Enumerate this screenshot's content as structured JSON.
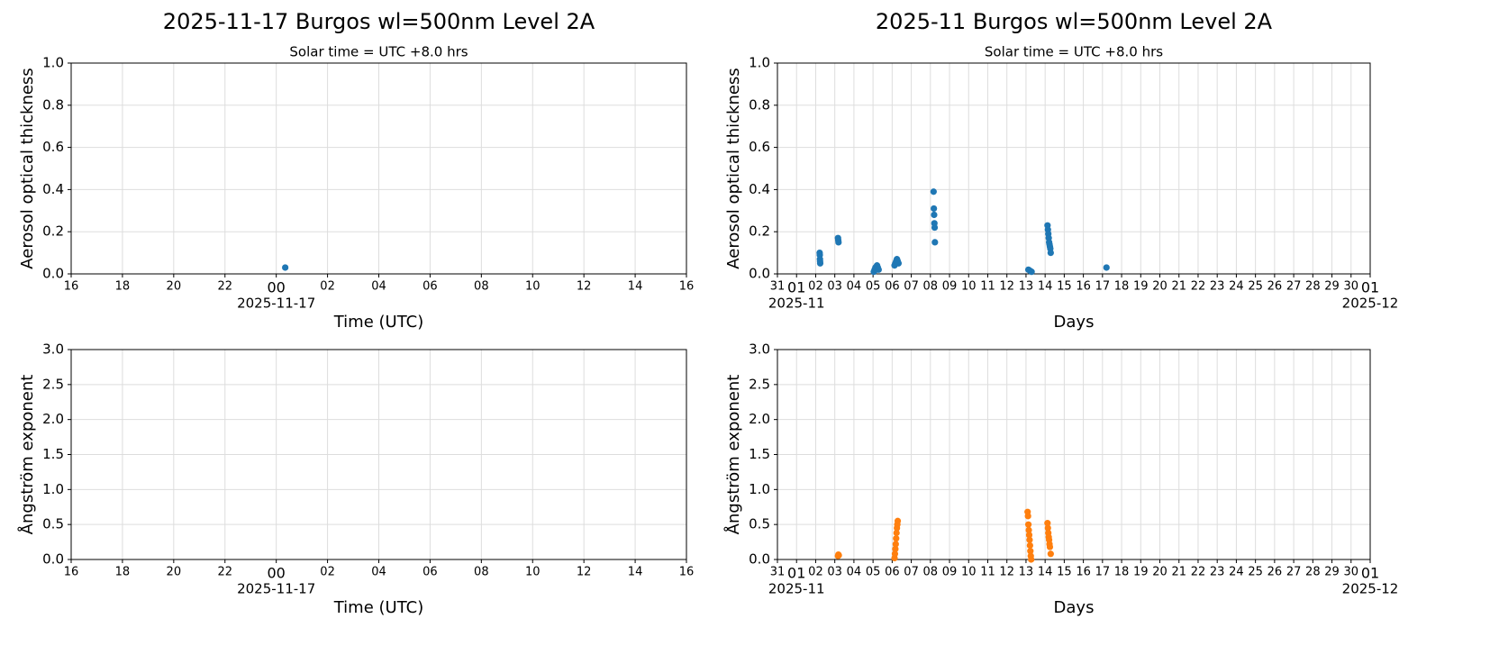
{
  "chart_data": [
    {
      "type": "scatter",
      "title": "2025-11-17  Burgos  wl=500nm  Level 2A",
      "subtitle": "Solar time = UTC +8.0 hrs",
      "ylabel": "Aerosol optical thickness",
      "xlabel": "Time (UTC)",
      "color": "#1f77b4",
      "grid": true,
      "x": [
        "2025-11-17T00:21"
      ],
      "values": [
        0.03
      ],
      "xlim": [
        "2025-11-16T16:00",
        "2025-11-17T16:00"
      ],
      "xticks": [
        {
          "value": "2025-11-16T16:00",
          "label": "16"
        },
        {
          "value": "2025-11-16T18:00",
          "label": "18"
        },
        {
          "value": "2025-11-16T20:00",
          "label": "20"
        },
        {
          "value": "2025-11-16T22:00",
          "label": "22"
        },
        {
          "value": "2025-11-17T00:00",
          "label": "00"
        },
        {
          "value": "2025-11-17T02:00",
          "label": "02"
        },
        {
          "value": "2025-11-17T04:00",
          "label": "04"
        },
        {
          "value": "2025-11-17T06:00",
          "label": "06"
        },
        {
          "value": "2025-11-17T08:00",
          "label": "08"
        },
        {
          "value": "2025-11-17T10:00",
          "label": "10"
        },
        {
          "value": "2025-11-17T12:00",
          "label": "12"
        },
        {
          "value": "2025-11-17T14:00",
          "label": "14"
        },
        {
          "value": "2025-11-17T16:00",
          "label": "16"
        }
      ],
      "x_offset_labels": [
        {
          "value": "2025-11-17T00:00",
          "label": "2025-11-17"
        }
      ],
      "ylim": [
        0,
        1
      ],
      "yticks": [
        {
          "value": 0,
          "label": "0.0"
        },
        0.2,
        0.4,
        0.6,
        0.8,
        {
          "value": 1,
          "label": "1.0"
        }
      ]
    },
    {
      "type": "scatter",
      "title": "2025-11  Burgos  wl=500nm  Level 2A",
      "subtitle": "Solar time = UTC +8.0 hrs",
      "ylabel": "Aerosol optical thickness",
      "xlabel": "Days",
      "color": "#1f77b4",
      "grid": true,
      "x": [
        "2025-11-02T05:00",
        "2025-11-02T05:10",
        "2025-11-02T05:20",
        "2025-11-02T05:30",
        "2025-11-02T05:40",
        "2025-11-03T04:00",
        "2025-11-03T04:20",
        "2025-11-03T04:40",
        "2025-11-05T01:00",
        "2025-11-05T02:00",
        "2025-11-05T03:00",
        "2025-11-05T04:00",
        "2025-11-05T05:00",
        "2025-11-05T06:00",
        "2025-11-05T07:00",
        "2025-11-06T03:00",
        "2025-11-06T04:00",
        "2025-11-06T05:00",
        "2025-11-06T06:00",
        "2025-11-06T07:00",
        "2025-11-06T08:00",
        "2025-11-08T04:00",
        "2025-11-08T04:20",
        "2025-11-08T04:40",
        "2025-11-08T05:00",
        "2025-11-08T05:20",
        "2025-11-08T05:40",
        "2025-11-13T03:00",
        "2025-11-13T05:00",
        "2025-11-13T07:00",
        "2025-11-14T03:00",
        "2025-11-14T03:30",
        "2025-11-14T04:00",
        "2025-11-14T04:30",
        "2025-11-14T05:00",
        "2025-11-14T05:30",
        "2025-11-14T06:00",
        "2025-11-14T06:30",
        "2025-11-14T07:00",
        "2025-11-17T05:00"
      ],
      "values": [
        0.1,
        0.09,
        0.07,
        0.06,
        0.05,
        0.17,
        0.16,
        0.15,
        0.01,
        0.02,
        0.03,
        0.02,
        0.04,
        0.03,
        0.02,
        0.04,
        0.05,
        0.06,
        0.07,
        0.06,
        0.05,
        0.39,
        0.31,
        0.28,
        0.24,
        0.22,
        0.15,
        0.02,
        0.015,
        0.01,
        0.23,
        0.21,
        0.19,
        0.17,
        0.15,
        0.14,
        0.13,
        0.12,
        0.1,
        0.03
      ],
      "xlim": [
        "2025-10-31T00:00",
        "2025-12-01T00:00"
      ],
      "xticks": [
        {
          "value": "2025-10-31T00:00",
          "label": "31"
        },
        {
          "value": "2025-11-01T00:00",
          "label": "01"
        },
        {
          "value": "2025-11-02T00:00",
          "label": "02"
        },
        {
          "value": "2025-11-03T00:00",
          "label": "03"
        },
        {
          "value": "2025-11-04T00:00",
          "label": "04"
        },
        {
          "value": "2025-11-05T00:00",
          "label": "05"
        },
        {
          "value": "2025-11-06T00:00",
          "label": "06"
        },
        {
          "value": "2025-11-07T00:00",
          "label": "07"
        },
        {
          "value": "2025-11-08T00:00",
          "label": "08"
        },
        {
          "value": "2025-11-09T00:00",
          "label": "09"
        },
        {
          "value": "2025-11-10T00:00",
          "label": "10"
        },
        {
          "value": "2025-11-11T00:00",
          "label": "11"
        },
        {
          "value": "2025-11-12T00:00",
          "label": "12"
        },
        {
          "value": "2025-11-13T00:00",
          "label": "13"
        },
        {
          "value": "2025-11-14T00:00",
          "label": "14"
        },
        {
          "value": "2025-11-15T00:00",
          "label": "15"
        },
        {
          "value": "2025-11-16T00:00",
          "label": "16"
        },
        {
          "value": "2025-11-17T00:00",
          "label": "17"
        },
        {
          "value": "2025-11-18T00:00",
          "label": "18"
        },
        {
          "value": "2025-11-19T00:00",
          "label": "19"
        },
        {
          "value": "2025-11-20T00:00",
          "label": "20"
        },
        {
          "value": "2025-11-21T00:00",
          "label": "21"
        },
        {
          "value": "2025-11-22T00:00",
          "label": "22"
        },
        {
          "value": "2025-11-23T00:00",
          "label": "23"
        },
        {
          "value": "2025-11-24T00:00",
          "label": "24"
        },
        {
          "value": "2025-11-25T00:00",
          "label": "25"
        },
        {
          "value": "2025-11-26T00:00",
          "label": "26"
        },
        {
          "value": "2025-11-27T00:00",
          "label": "27"
        },
        {
          "value": "2025-11-28T00:00",
          "label": "28"
        },
        {
          "value": "2025-11-29T00:00",
          "label": "29"
        },
        {
          "value": "2025-11-30T00:00",
          "label": "30"
        },
        {
          "value": "2025-12-01T00:00",
          "label": "01"
        }
      ],
      "x_offset_labels": [
        {
          "value": "2025-11-01T00:00",
          "label": "2025-11"
        },
        {
          "value": "2025-12-01T00:00",
          "label": "2025-12"
        }
      ],
      "ylim": [
        0,
        1
      ],
      "yticks": [
        {
          "value": 0,
          "label": "0.0"
        },
        0.2,
        0.4,
        0.6,
        0.8,
        {
          "value": 1,
          "label": "1.0"
        }
      ]
    },
    {
      "type": "scatter",
      "ylabel": "Ångström exponent",
      "xlabel": "Time (UTC)",
      "color": "#ff7f0e",
      "grid": true,
      "x": [],
      "values": [],
      "xlim": [
        "2025-11-16T16:00",
        "2025-11-17T16:00"
      ],
      "xticks": [
        {
          "value": "2025-11-16T16:00",
          "label": "16"
        },
        {
          "value": "2025-11-16T18:00",
          "label": "18"
        },
        {
          "value": "2025-11-16T20:00",
          "label": "20"
        },
        {
          "value": "2025-11-16T22:00",
          "label": "22"
        },
        {
          "value": "2025-11-17T00:00",
          "label": "00"
        },
        {
          "value": "2025-11-17T02:00",
          "label": "02"
        },
        {
          "value": "2025-11-17T04:00",
          "label": "04"
        },
        {
          "value": "2025-11-17T06:00",
          "label": "06"
        },
        {
          "value": "2025-11-17T08:00",
          "label": "08"
        },
        {
          "value": "2025-11-17T10:00",
          "label": "10"
        },
        {
          "value": "2025-11-17T12:00",
          "label": "12"
        },
        {
          "value": "2025-11-17T14:00",
          "label": "14"
        },
        {
          "value": "2025-11-17T16:00",
          "label": "16"
        }
      ],
      "x_offset_labels": [
        {
          "value": "2025-11-17T00:00",
          "label": "2025-11-17"
        }
      ],
      "ylim": [
        0,
        3
      ],
      "yticks": [
        {
          "value": 0,
          "label": "0.0"
        },
        0.5,
        {
          "value": 1,
          "label": "1.0"
        },
        1.5,
        {
          "value": 2,
          "label": "2.0"
        },
        2.5,
        {
          "value": 3,
          "label": "3.0"
        }
      ]
    },
    {
      "type": "scatter",
      "ylabel": "Ångström exponent",
      "xlabel": "Days",
      "color": "#ff7f0e",
      "grid": true,
      "x": [
        "2025-11-03T04:00",
        "2025-11-03T04:30",
        "2025-11-03T05:00",
        "2025-11-06T03:00",
        "2025-11-06T03:30",
        "2025-11-06T04:00",
        "2025-11-06T04:30",
        "2025-11-06T05:00",
        "2025-11-06T05:30",
        "2025-11-06T06:00",
        "2025-11-06T06:30",
        "2025-11-06T07:00",
        "2025-11-13T02:00",
        "2025-11-13T02:30",
        "2025-11-13T03:00",
        "2025-11-13T03:30",
        "2025-11-13T04:00",
        "2025-11-13T04:30",
        "2025-11-13T05:00",
        "2025-11-13T05:30",
        "2025-11-13T06:00",
        "2025-11-13T06:30",
        "2025-11-14T03:00",
        "2025-11-14T03:30",
        "2025-11-14T04:00",
        "2025-11-14T04:30",
        "2025-11-14T05:00",
        "2025-11-14T05:30",
        "2025-11-14T06:00",
        "2025-11-14T07:00"
      ],
      "values": [
        0.05,
        0.07,
        0.06,
        0.02,
        0.08,
        0.15,
        0.22,
        0.3,
        0.38,
        0.45,
        0.5,
        0.55,
        0.68,
        0.62,
        0.5,
        0.42,
        0.35,
        0.28,
        0.2,
        0.12,
        0.05,
        0.0,
        0.52,
        0.45,
        0.38,
        0.32,
        0.28,
        0.22,
        0.18,
        0.08
      ],
      "xlim": [
        "2025-10-31T00:00",
        "2025-12-01T00:00"
      ],
      "xticks": [
        {
          "value": "2025-10-31T00:00",
          "label": "31"
        },
        {
          "value": "2025-11-01T00:00",
          "label": "01"
        },
        {
          "value": "2025-11-02T00:00",
          "label": "02"
        },
        {
          "value": "2025-11-03T00:00",
          "label": "03"
        },
        {
          "value": "2025-11-04T00:00",
          "label": "04"
        },
        {
          "value": "2025-11-05T00:00",
          "label": "05"
        },
        {
          "value": "2025-11-06T00:00",
          "label": "06"
        },
        {
          "value": "2025-11-07T00:00",
          "label": "07"
        },
        {
          "value": "2025-11-08T00:00",
          "label": "08"
        },
        {
          "value": "2025-11-09T00:00",
          "label": "09"
        },
        {
          "value": "2025-11-10T00:00",
          "label": "10"
        },
        {
          "value": "2025-11-11T00:00",
          "label": "11"
        },
        {
          "value": "2025-11-12T00:00",
          "label": "12"
        },
        {
          "value": "2025-11-13T00:00",
          "label": "13"
        },
        {
          "value": "2025-11-14T00:00",
          "label": "14"
        },
        {
          "value": "2025-11-15T00:00",
          "label": "15"
        },
        {
          "value": "2025-11-16T00:00",
          "label": "16"
        },
        {
          "value": "2025-11-17T00:00",
          "label": "17"
        },
        {
          "value": "2025-11-18T00:00",
          "label": "18"
        },
        {
          "value": "2025-11-19T00:00",
          "label": "19"
        },
        {
          "value": "2025-11-20T00:00",
          "label": "20"
        },
        {
          "value": "2025-11-21T00:00",
          "label": "21"
        },
        {
          "value": "2025-11-22T00:00",
          "label": "22"
        },
        {
          "value": "2025-11-23T00:00",
          "label": "23"
        },
        {
          "value": "2025-11-24T00:00",
          "label": "24"
        },
        {
          "value": "2025-11-25T00:00",
          "label": "25"
        },
        {
          "value": "2025-11-26T00:00",
          "label": "26"
        },
        {
          "value": "2025-11-27T00:00",
          "label": "27"
        },
        {
          "value": "2025-11-28T00:00",
          "label": "28"
        },
        {
          "value": "2025-11-29T00:00",
          "label": "29"
        },
        {
          "value": "2025-11-30T00:00",
          "label": "30"
        },
        {
          "value": "2025-12-01T00:00",
          "label": "01"
        }
      ],
      "x_offset_labels": [
        {
          "value": "2025-11-01T00:00",
          "label": "2025-11"
        },
        {
          "value": "2025-12-01T00:00",
          "label": "2025-12"
        }
      ],
      "ylim": [
        0,
        3
      ],
      "yticks": [
        {
          "value": 0,
          "label": "0.0"
        },
        0.5,
        {
          "value": 1,
          "label": "1.0"
        },
        1.5,
        {
          "value": 2,
          "label": "2.0"
        },
        2.5,
        {
          "value": 3,
          "label": "3.0"
        }
      ]
    }
  ]
}
